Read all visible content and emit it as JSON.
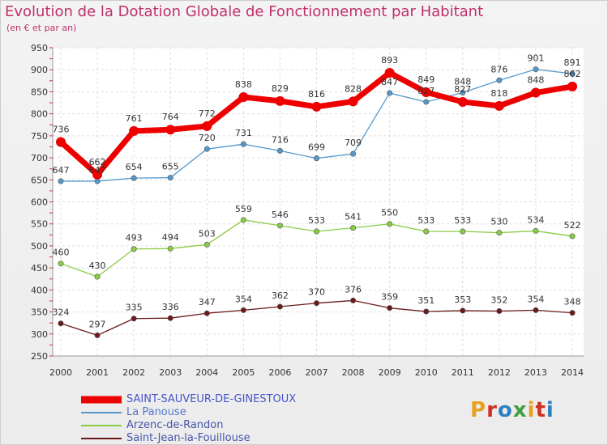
{
  "title": "Evolution de la Dotation Globale de Fonctionnement par Habitant",
  "subtitle": "(en € et par an)",
  "logo": {
    "text": "Proxiti",
    "colors": [
      "#e8a020",
      "#d03020",
      "#3080c0",
      "#40a040",
      "#e8a020",
      "#d03020",
      "#3080c0"
    ]
  },
  "chart_data": {
    "type": "line",
    "title": "Evolution de la Dotation Globale de Fonctionnement par Habitant",
    "subtitle": "(en € et par an)",
    "x": [
      "2000",
      "2001",
      "2002",
      "2003",
      "2004",
      "2005",
      "2006",
      "2007",
      "2008",
      "2009",
      "2010",
      "2011",
      "2012",
      "2013",
      "2014"
    ],
    "y_ticks": [
      250,
      300,
      350,
      400,
      450,
      500,
      550,
      600,
      650,
      700,
      750,
      800,
      850,
      900,
      950
    ],
    "ylim": [
      250,
      950
    ],
    "grid": true,
    "series": [
      {
        "name": "SAINT-SAUVEUR-DE-GINESTOUX",
        "color": "#ee0000",
        "values": [
          736,
          662,
          761,
          764,
          772,
          838,
          829,
          816,
          828,
          893,
          849,
          827,
          818,
          848,
          862
        ],
        "labels": [
          "736",
          "662",
          "761",
          "764",
          "772",
          "838",
          "829",
          "816",
          "828",
          "893",
          "849",
          "827",
          "818",
          "848",
          "862"
        ]
      },
      {
        "name": "La Panouse",
        "color": "#5599cc",
        "values": [
          647,
          647,
          654,
          655,
          720,
          731,
          716,
          699,
          709,
          847,
          827,
          848,
          876,
          901,
          891
        ],
        "labels": [
          "647",
          "647",
          "654",
          "655",
          "720",
          "731",
          "716",
          "699",
          "709",
          "847",
          "827",
          "848",
          "876",
          "901",
          "891"
        ]
      },
      {
        "name": "Arzenc-de-Randon",
        "color": "#88cc44",
        "values": [
          460,
          430,
          493,
          494,
          503,
          559,
          546,
          533,
          541,
          550,
          533,
          533,
          530,
          534,
          522
        ],
        "labels": [
          "460",
          "430",
          "493",
          "494",
          "503",
          "559",
          "546",
          "533",
          "541",
          "550",
          "533",
          "533",
          "530",
          "534",
          "522"
        ]
      },
      {
        "name": "Saint-Jean-la-Fouillouse",
        "color": "#6b1a1a",
        "values": [
          324,
          297,
          335,
          336,
          347,
          354,
          362,
          370,
          376,
          359,
          351,
          353,
          352,
          354,
          348
        ],
        "labels": [
          "324",
          "297",
          "335",
          "336",
          "347",
          "354",
          "362",
          "370",
          "376",
          "359",
          "351",
          "353",
          "352",
          "354",
          "348"
        ]
      }
    ],
    "legend_position": "bottom-left"
  }
}
